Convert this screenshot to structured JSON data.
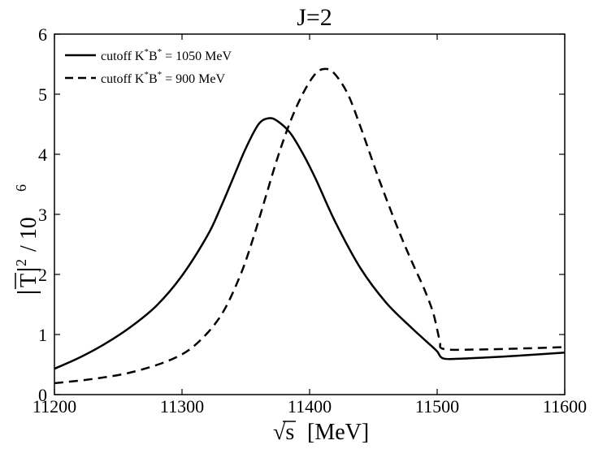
{
  "chart_data": {
    "type": "line",
    "title": "J=2",
    "xlabel": "[MeV]",
    "xlabel_prefix": "√s",
    "ylabel": "|T̄|² / 10⁶",
    "ylabel_parts": {
      "t": "T",
      "sq": "2",
      "mid": "/ 10",
      "exp": "6"
    },
    "xlim": [
      11200,
      11600
    ],
    "ylim": [
      0,
      6
    ],
    "xticks": [
      11200,
      11300,
      11400,
      11500,
      11600
    ],
    "yticks": [
      0,
      1,
      2,
      3,
      4,
      5,
      6
    ],
    "grid": false,
    "legend_position": "top-left",
    "series": [
      {
        "name": "cutoff K*B* = 1050 MeV",
        "legend": {
          "pre": "cutoff K",
          "mid": "B",
          "post": " = 1050 MeV",
          "sup": "*"
        },
        "style": "solid",
        "color": "#000000",
        "points": [
          [
            11200,
            0.43
          ],
          [
            11220,
            0.62
          ],
          [
            11240,
            0.85
          ],
          [
            11260,
            1.13
          ],
          [
            11280,
            1.48
          ],
          [
            11300,
            1.98
          ],
          [
            11320,
            2.65
          ],
          [
            11330,
            3.1
          ],
          [
            11340,
            3.6
          ],
          [
            11350,
            4.1
          ],
          [
            11360,
            4.5
          ],
          [
            11368,
            4.6
          ],
          [
            11375,
            4.55
          ],
          [
            11385,
            4.35
          ],
          [
            11395,
            4.0
          ],
          [
            11405,
            3.58
          ],
          [
            11420,
            2.88
          ],
          [
            11440,
            2.1
          ],
          [
            11460,
            1.53
          ],
          [
            11480,
            1.11
          ],
          [
            11495,
            0.82
          ],
          [
            11500,
            0.72
          ],
          [
            11505,
            0.6
          ],
          [
            11520,
            0.6
          ],
          [
            11550,
            0.63
          ],
          [
            11580,
            0.67
          ],
          [
            11600,
            0.7
          ]
        ]
      },
      {
        "name": "cutoff K*B* = 900 MeV",
        "legend": {
          "pre": "cutoff K",
          "mid": "B",
          "post": " = 900 MeV",
          "sup": "*"
        },
        "style": "dashed",
        "color": "#000000",
        "points": [
          [
            11200,
            0.19
          ],
          [
            11230,
            0.26
          ],
          [
            11260,
            0.37
          ],
          [
            11290,
            0.57
          ],
          [
            11310,
            0.82
          ],
          [
            11330,
            1.3
          ],
          [
            11345,
            1.95
          ],
          [
            11355,
            2.55
          ],
          [
            11365,
            3.25
          ],
          [
            11375,
            3.95
          ],
          [
            11385,
            4.55
          ],
          [
            11395,
            5.02
          ],
          [
            11405,
            5.35
          ],
          [
            11413,
            5.42
          ],
          [
            11420,
            5.33
          ],
          [
            11430,
            5.0
          ],
          [
            11440,
            4.45
          ],
          [
            11455,
            3.55
          ],
          [
            11470,
            2.72
          ],
          [
            11480,
            2.22
          ],
          [
            11490,
            1.75
          ],
          [
            11497,
            1.35
          ],
          [
            11502,
            0.9
          ],
          [
            11505,
            0.76
          ],
          [
            11530,
            0.75
          ],
          [
            11570,
            0.77
          ],
          [
            11600,
            0.79
          ]
        ]
      }
    ]
  }
}
